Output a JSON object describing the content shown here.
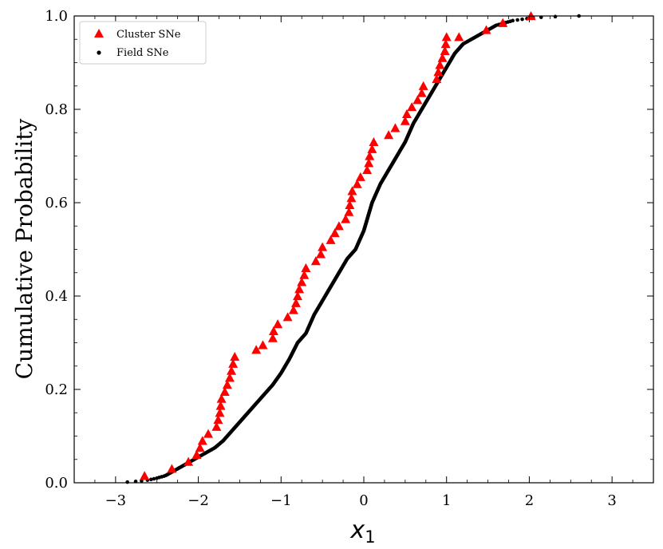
{
  "chart_data": {
    "type": "scatter",
    "title": "",
    "xlabel": "x",
    "xlabel_subscript": "1",
    "ylabel": "Cumulative Probability",
    "xlim": [
      -3.5,
      3.5
    ],
    "ylim": [
      0.0,
      1.0
    ],
    "x_ticks": [
      -3,
      -2,
      -1,
      0,
      1,
      2,
      3
    ],
    "x_tick_labels": [
      "−3",
      "−2",
      "−1",
      "0",
      "1",
      "2",
      "3"
    ],
    "y_ticks": [
      0.0,
      0.2,
      0.4,
      0.6,
      0.8,
      1.0
    ],
    "y_tick_labels": [
      "0.0",
      "0.2",
      "0.4",
      "0.6",
      "0.8",
      "1.0"
    ],
    "grid": false,
    "legend_position": "top-left",
    "colors": {
      "cluster": "#ff0000",
      "field": "#000000"
    },
    "series": [
      {
        "name": "Cluster SNe",
        "marker": "triangle",
        "x": [
          -2.65,
          -2.32,
          -2.12,
          -2.02,
          -1.98,
          -1.95,
          -1.88,
          -1.78,
          -1.76,
          -1.74,
          -1.73,
          -1.72,
          -1.68,
          -1.65,
          -1.62,
          -1.6,
          -1.58,
          -1.56,
          -1.3,
          -1.22,
          -1.1,
          -1.09,
          -1.04,
          -0.92,
          -0.85,
          -0.82,
          -0.8,
          -0.78,
          -0.75,
          -0.72,
          -0.7,
          -0.58,
          -0.52,
          -0.5,
          -0.4,
          -0.35,
          -0.3,
          -0.22,
          -0.18,
          -0.17,
          -0.15,
          -0.14,
          -0.08,
          -0.04,
          0.04,
          0.06,
          0.07,
          0.1,
          0.12,
          0.3,
          0.38,
          0.5,
          0.52,
          0.58,
          0.65,
          0.7,
          0.72,
          0.88,
          0.9,
          0.92,
          0.95,
          0.98,
          0.99,
          1.0,
          1.15,
          1.48,
          1.68,
          2.02
        ],
        "y": [
          0.015,
          0.03,
          0.045,
          0.06,
          0.075,
          0.09,
          0.105,
          0.12,
          0.135,
          0.15,
          0.165,
          0.18,
          0.195,
          0.21,
          0.225,
          0.24,
          0.255,
          0.27,
          0.285,
          0.295,
          0.31,
          0.325,
          0.34,
          0.355,
          0.37,
          0.385,
          0.4,
          0.415,
          0.43,
          0.445,
          0.46,
          0.475,
          0.49,
          0.505,
          0.52,
          0.535,
          0.55,
          0.565,
          0.58,
          0.595,
          0.61,
          0.625,
          0.64,
          0.655,
          0.67,
          0.685,
          0.7,
          0.715,
          0.73,
          0.745,
          0.76,
          0.775,
          0.79,
          0.805,
          0.82,
          0.835,
          0.85,
          0.865,
          0.88,
          0.895,
          0.91,
          0.925,
          0.94,
          0.955,
          0.955,
          0.97,
          0.985,
          1.0
        ]
      },
      {
        "name": "Field SNe",
        "marker": "dot",
        "cdf_knots_x": [
          -3.0,
          -2.8,
          -2.6,
          -2.5,
          -2.4,
          -2.3,
          -2.2,
          -2.1,
          -2.0,
          -1.9,
          -1.8,
          -1.7,
          -1.6,
          -1.5,
          -1.4,
          -1.3,
          -1.2,
          -1.1,
          -1.0,
          -0.9,
          -0.8,
          -0.7,
          -0.6,
          -0.5,
          -0.4,
          -0.3,
          -0.2,
          -0.1,
          0.0,
          0.1,
          0.2,
          0.3,
          0.4,
          0.5,
          0.6,
          0.7,
          0.8,
          0.9,
          1.0,
          1.1,
          1.2,
          1.3,
          1.4,
          1.5,
          1.6,
          1.8,
          2.0,
          2.2,
          2.6
        ],
        "cdf_knots_y": [
          0.0,
          0.002,
          0.006,
          0.01,
          0.015,
          0.025,
          0.035,
          0.045,
          0.055,
          0.065,
          0.075,
          0.09,
          0.11,
          0.13,
          0.15,
          0.17,
          0.19,
          0.21,
          0.235,
          0.265,
          0.3,
          0.32,
          0.36,
          0.39,
          0.42,
          0.45,
          0.48,
          0.5,
          0.54,
          0.6,
          0.64,
          0.67,
          0.7,
          0.73,
          0.77,
          0.8,
          0.83,
          0.86,
          0.89,
          0.92,
          0.94,
          0.95,
          0.96,
          0.97,
          0.98,
          0.99,
          0.995,
          0.998,
          1.0
        ],
        "n_points": 700
      }
    ]
  }
}
